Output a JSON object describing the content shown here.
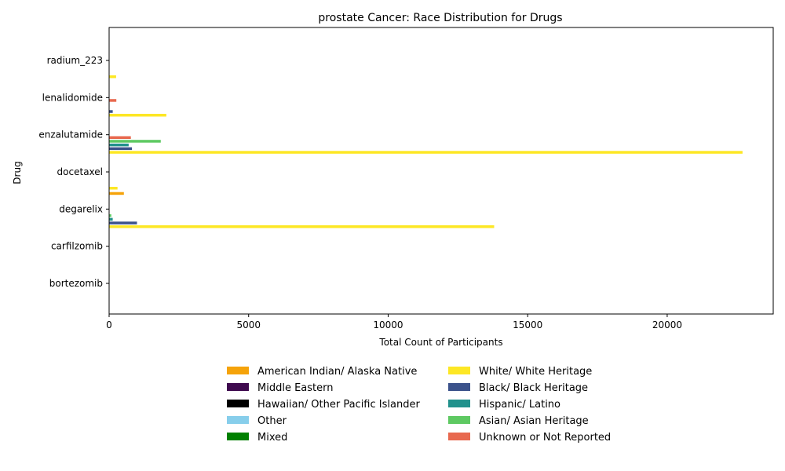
{
  "chart_data": {
    "type": "bar",
    "orientation": "horizontal",
    "title": "prostate Cancer: Race Distribution for Drugs",
    "xlabel": "Total Count of Participants",
    "ylabel": "Drug",
    "xlim": [
      0,
      23800
    ],
    "xticks": [
      0,
      5000,
      10000,
      15000,
      20000
    ],
    "xtick_labels": [
      "0",
      "5000",
      "10000",
      "15000",
      "20000"
    ],
    "grid": false,
    "legend_position": "bottom-center",
    "categories": [
      "radium_223",
      "lenalidomide",
      "enzalutamide",
      "docetaxel",
      "degarelix",
      "carfilzomib",
      "bortezomib"
    ],
    "series": [
      {
        "name": "American Indian/ Alaska Native",
        "color": "#f5a30a",
        "values": [
          0,
          0,
          0,
          0,
          530,
          0,
          0
        ]
      },
      {
        "name": "Middle Eastern",
        "color": "#3f0a4f",
        "values": [
          0,
          0,
          0,
          0,
          0,
          0,
          0
        ]
      },
      {
        "name": "Hawaiian/ Other Pacific Islander",
        "color": "#000000",
        "values": [
          0,
          0,
          0,
          0,
          0,
          0,
          0
        ]
      },
      {
        "name": "Other",
        "color": "#87ceeb",
        "values": [
          0,
          0,
          0,
          0,
          0,
          0,
          0
        ]
      },
      {
        "name": "Mixed",
        "color": "#008000",
        "values": [
          0,
          0,
          0,
          0,
          0,
          0,
          0
        ]
      },
      {
        "name": "Unknown or Not Reported",
        "color": "#e8694f",
        "values": [
          0,
          260,
          780,
          0,
          0,
          0,
          0
        ]
      },
      {
        "name": "Asian/ Asian Heritage",
        "color": "#5ec962",
        "values": [
          0,
          0,
          1850,
          0,
          80,
          0,
          0
        ]
      },
      {
        "name": "Hispanic/ Latino",
        "color": "#21918c",
        "values": [
          0,
          0,
          700,
          0,
          130,
          0,
          0
        ]
      },
      {
        "name": "Black/ Black Heritage",
        "color": "#3b528b",
        "values": [
          0,
          130,
          820,
          0,
          1000,
          0,
          0
        ]
      },
      {
        "name": "White/ White Heritage",
        "color": "#fde725",
        "values": [
          0,
          2050,
          22700,
          0,
          13800,
          0,
          0
        ]
      }
    ],
    "legend": {
      "column1": [
        {
          "name": "American Indian/ Alaska Native",
          "color": "#f5a30a"
        },
        {
          "name": "Middle Eastern",
          "color": "#3f0a4f"
        },
        {
          "name": "Hawaiian/ Other Pacific Islander",
          "color": "#000000"
        },
        {
          "name": "Other",
          "color": "#87ceeb"
        },
        {
          "name": "Mixed",
          "color": "#008000"
        }
      ],
      "column2": [
        {
          "name": "White/ White Heritage",
          "color": "#fde725"
        },
        {
          "name": "Black/ Black Heritage",
          "color": "#3b528b"
        },
        {
          "name": "Hispanic/ Latino",
          "color": "#21918c"
        },
        {
          "name": "Asian/ Asian Heritage",
          "color": "#5ec962"
        },
        {
          "name": "Unknown or Not Reported",
          "color": "#e8694f"
        }
      ]
    },
    "extra_bars": [
      {
        "category": "radium_223",
        "color": "#fde725",
        "value": 250
      },
      {
        "category": "docetaxel",
        "color": "#fde725",
        "value": 300
      }
    ]
  }
}
